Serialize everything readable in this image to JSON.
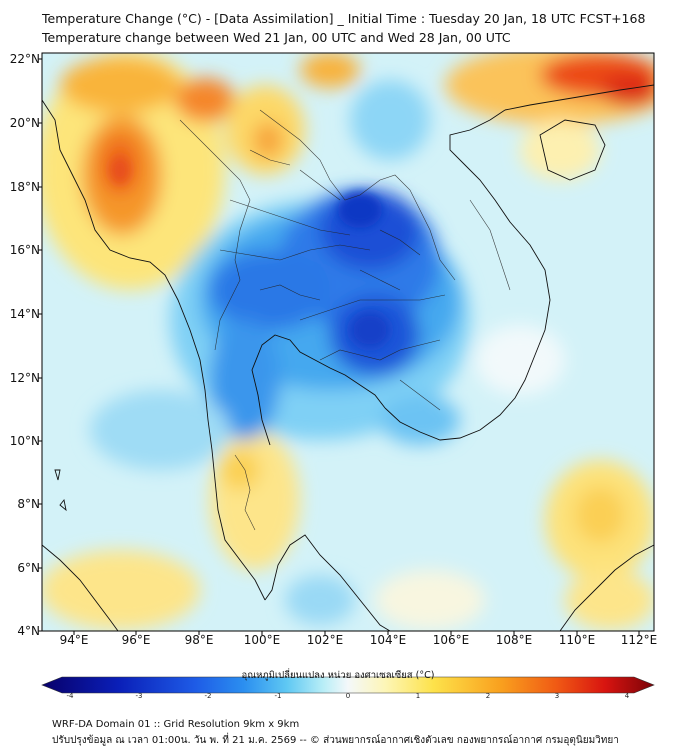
{
  "title_line1": "Temperature Change (°C) - [Data Assimilation] _ Initial Time : Tuesday 20 Jan, 18 UTC FCST+168",
  "title_line2": "Temperature change between Wed 21 Jan, 00 UTC and Wed 28 Jan, 00 UTC",
  "lat_ticks": [
    "22°N",
    "20°N",
    "18°N",
    "16°N",
    "14°N",
    "12°N",
    "10°N",
    "8°N",
    "6°N",
    "4°N"
  ],
  "lon_ticks": [
    "94°E",
    "96°E",
    "98°E",
    "100°E",
    "102°E",
    "104°E",
    "106°E",
    "108°E",
    "110°E",
    "112°E"
  ],
  "colorbar": {
    "title": "อุณหภูมิเปลี่ยนแปลง หน่วย องศาเซลเซียส (°C)",
    "ticks": [
      "-4",
      "-3",
      "-2",
      "-1",
      "0",
      "1",
      "2",
      "3",
      "4"
    ],
    "min": -4,
    "max": 4,
    "colors": [
      "#08006a",
      "#0a1fb8",
      "#1e5be6",
      "#2b8ff0",
      "#5fc8f3",
      "#b9eef7",
      "#f4f8fa",
      "#fdf6b8",
      "#fde24a",
      "#f9a01e",
      "#f05a14",
      "#d81410",
      "#7a0308"
    ]
  },
  "footer_line1": "WRF-DA Domain 01 :: Grid Resolution 9km x 9km",
  "footer_line2": "ปรับปรุงข้อมูล ณ เวลา 01:00น. วัน พ. ที่ 21 ม.ค. 2569 -- © ส่วนพยากรณ์อากาศเชิงตัวเลข กองพยากรณ์อากาศ กรมอุตุนิยมวิทยา"
}
